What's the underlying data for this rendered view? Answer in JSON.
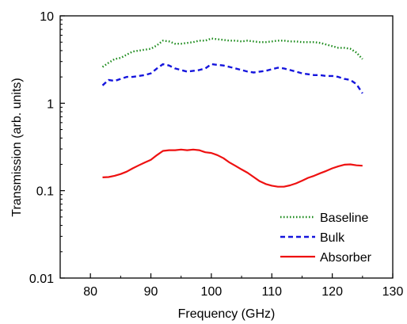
{
  "chart_data": {
    "type": "line",
    "xlabel": "Frequency (GHz)",
    "ylabel": "Transmission (arb. units)",
    "xlim": [
      75,
      130
    ],
    "ylim": [
      0.01,
      10
    ],
    "yscale": "log",
    "x_ticks": [
      80,
      90,
      100,
      110,
      120,
      130
    ],
    "y_ticks": [
      {
        "value": 0.01,
        "label": "0.01"
      },
      {
        "value": 0.1,
        "label": "0.1"
      },
      {
        "value": 1,
        "label": "1"
      },
      {
        "value": 10,
        "label": "10"
      }
    ],
    "grid": false,
    "legend_position": "bottom-right",
    "series": [
      {
        "name": "Baseline",
        "color": "#1a8a1a",
        "style": "dotted",
        "x": [
          82,
          83,
          84,
          85,
          86,
          87,
          88,
          89,
          90,
          91,
          92,
          93,
          94,
          95,
          96,
          97,
          98,
          99,
          100,
          101,
          102,
          103,
          104,
          105,
          106,
          107,
          108,
          109,
          110,
          111,
          112,
          113,
          114,
          115,
          116,
          117,
          118,
          119,
          120,
          121,
          122,
          123,
          124,
          125
        ],
        "y": [
          2.6,
          2.9,
          3.2,
          3.3,
          3.6,
          3.9,
          4.0,
          4.1,
          4.2,
          4.6,
          5.2,
          5.1,
          4.8,
          4.8,
          4.9,
          5.0,
          5.2,
          5.2,
          5.5,
          5.4,
          5.3,
          5.2,
          5.2,
          5.1,
          5.2,
          5.1,
          5.0,
          5.0,
          5.1,
          5.2,
          5.2,
          5.1,
          5.1,
          5.0,
          5.0,
          5.0,
          4.9,
          4.7,
          4.5,
          4.3,
          4.3,
          4.2,
          3.8,
          3.2
        ]
      },
      {
        "name": "Bulk",
        "color": "#1515dd",
        "style": "dashed",
        "x": [
          82,
          83,
          84,
          85,
          86,
          87,
          88,
          89,
          90,
          91,
          92,
          93,
          94,
          95,
          96,
          97,
          98,
          99,
          100,
          101,
          102,
          103,
          104,
          105,
          106,
          107,
          108,
          109,
          110,
          111,
          112,
          113,
          114,
          115,
          116,
          117,
          118,
          119,
          120,
          121,
          122,
          123,
          124,
          125
        ],
        "y": [
          1.6,
          1.85,
          1.8,
          1.9,
          2.0,
          2.0,
          2.05,
          2.1,
          2.2,
          2.5,
          2.8,
          2.7,
          2.5,
          2.4,
          2.3,
          2.35,
          2.4,
          2.5,
          2.8,
          2.75,
          2.7,
          2.6,
          2.5,
          2.4,
          2.3,
          2.25,
          2.3,
          2.35,
          2.45,
          2.55,
          2.5,
          2.4,
          2.3,
          2.2,
          2.15,
          2.1,
          2.1,
          2.05,
          2.05,
          2.0,
          1.9,
          1.85,
          1.65,
          1.3
        ]
      },
      {
        "name": "Absorber",
        "color": "#ee1111",
        "style": "solid",
        "x": [
          82,
          83,
          84,
          85,
          86,
          87,
          88,
          89,
          90,
          91,
          92,
          93,
          94,
          95,
          96,
          97,
          98,
          99,
          100,
          101,
          102,
          103,
          104,
          105,
          106,
          107,
          108,
          109,
          110,
          111,
          112,
          113,
          114,
          115,
          116,
          117,
          118,
          119,
          120,
          121,
          122,
          123,
          124,
          125
        ],
        "y": [
          0.142,
          0.143,
          0.148,
          0.155,
          0.165,
          0.18,
          0.195,
          0.21,
          0.225,
          0.255,
          0.285,
          0.29,
          0.29,
          0.295,
          0.29,
          0.295,
          0.29,
          0.275,
          0.27,
          0.255,
          0.235,
          0.21,
          0.192,
          0.175,
          0.16,
          0.143,
          0.128,
          0.119,
          0.114,
          0.111,
          0.111,
          0.115,
          0.121,
          0.13,
          0.14,
          0.148,
          0.158,
          0.168,
          0.18,
          0.19,
          0.198,
          0.2,
          0.195,
          0.193
        ]
      }
    ]
  }
}
